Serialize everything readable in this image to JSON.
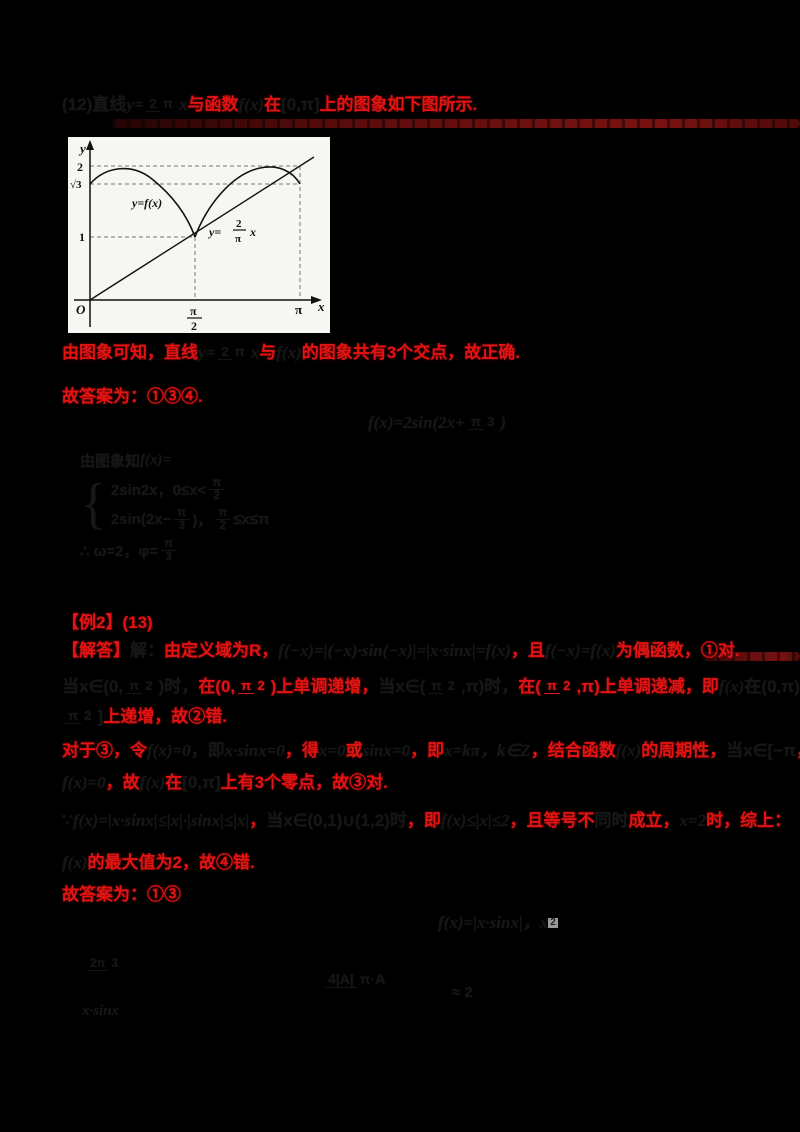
{
  "page": {
    "background": "#000000",
    "accent_red": "#e21313",
    "divider_maroon": "#5c0c0c",
    "faint_ink": "#161616",
    "figure_bg": "#f6f6f3"
  },
  "p12": {
    "intro": [
      {
        "t": "(12)直线",
        "c": "ink"
      },
      {
        "t": "y=",
        "c": "ink",
        "i": true
      },
      {
        "f": {
          "n": "2",
          "d": "π"
        },
        "c": "ink"
      },
      {
        "t": "x",
        "c": "ink",
        "i": true
      },
      {
        "t": "与函数",
        "c": "red"
      },
      {
        "t": "f(x)",
        "c": "ink",
        "i": true
      },
      {
        "t": "在",
        "c": "red"
      },
      {
        "t": "[0,π]",
        "c": "ink"
      },
      {
        "t": "上的图象如下图所示.",
        "c": "red"
      }
    ],
    "analysis": [
      {
        "t": "由图象可知，直线",
        "c": "red"
      },
      {
        "t": "y=",
        "c": "ink",
        "i": true
      },
      {
        "f": {
          "n": "2",
          "d": "π"
        },
        "c": "ink"
      },
      {
        "t": "x",
        "c": "ink",
        "i": true
      },
      {
        "t": "与",
        "c": "red"
      },
      {
        "t": "f(x)",
        "c": "ink",
        "i": true
      },
      {
        "t": "的图象共有3个交点，故正确.",
        "c": "red"
      }
    ],
    "answer": [
      {
        "t": "故答案为：①③④.",
        "c": "red"
      }
    ],
    "formula": [
      {
        "t": "f(x)=2sin(2x+",
        "c": "ink",
        "i": true
      },
      {
        "f": {
          "n": "π",
          "d": "3"
        },
        "c": "ink"
      },
      {
        "t": ")",
        "c": "ink",
        "i": true
      }
    ],
    "deriv_head": [
      {
        "t": "由图象知",
        "c": "ink"
      },
      {
        "t": "f(x)=",
        "c": "ink",
        "i": true
      }
    ],
    "case1": [
      {
        "t": "2sin2x，0≤x<",
        "c": "ink"
      },
      {
        "f": {
          "n": "π",
          "d": "2"
        },
        "c": "ink"
      }
    ],
    "case2": [
      {
        "t": "2sin(2x−",
        "c": "ink"
      },
      {
        "f": {
          "n": "π",
          "d": "3"
        },
        "c": "ink"
      },
      {
        "t": ")，",
        "c": "ink"
      },
      {
        "f": {
          "n": "π",
          "d": "2"
        },
        "c": "ink"
      },
      {
        "t": "≤x≤π",
        "c": "ink"
      }
    ],
    "deriv_tail": [
      {
        "t": "∴ ω=2，φ=",
        "c": "ink"
      },
      {
        "f": {
          "n": "π",
          "d": "3"
        },
        "c": "ink"
      }
    ]
  },
  "p13": {
    "header": [
      {
        "t": "【例2】(13)",
        "c": "red"
      }
    ],
    "l1": [
      {
        "t": "【解答】",
        "c": "red"
      },
      {
        "t": "解：",
        "c": "ink"
      },
      {
        "t": "由定义域为R，",
        "c": "red"
      },
      {
        "t": "f(−x)=|(−x)·sin(−x)|=|x·sinx|=f(x)",
        "c": "ink",
        "i": true
      },
      {
        "t": "，且",
        "c": "red"
      },
      {
        "t": "f(−x)=f(x)",
        "c": "ink",
        "i": true
      },
      {
        "t": "为偶函数，①对.",
        "c": "red"
      }
    ],
    "l2": [
      {
        "t": "当x∈(0,",
        "c": "ink"
      },
      {
        "f": {
          "n": "π",
          "d": "2"
        },
        "c": "ink"
      },
      {
        "t": ")时，",
        "c": "ink"
      },
      {
        "t": "在(0,",
        "c": "red"
      },
      {
        "f": {
          "n": "π",
          "d": "2"
        },
        "c": "red"
      },
      {
        "t": ")上单调递增，",
        "c": "red"
      },
      {
        "t": "当x∈(",
        "c": "ink"
      },
      {
        "f": {
          "n": "π",
          "d": "2"
        },
        "c": "ink"
      },
      {
        "t": ",π)时，",
        "c": "ink"
      },
      {
        "t": "在(",
        "c": "red"
      },
      {
        "f": {
          "n": "π",
          "d": "2"
        },
        "c": "red"
      },
      {
        "t": ",π)上单调递减，",
        "c": "red"
      },
      {
        "t": "即",
        "c": "red"
      },
      {
        "t": "f(x)",
        "c": "ink",
        "i": true
      },
      {
        "t": "在(0,π)内不单调，不可能在",
        "c": "ink"
      },
      {
        "t": "[0,",
        "c": "red"
      }
    ],
    "l3": [
      {
        "f": {
          "n": "π",
          "d": "2"
        },
        "c": "ink"
      },
      {
        "t": "]",
        "c": "ink"
      },
      {
        "t": "上递增，故②错.",
        "c": "red"
      }
    ],
    "l4": [
      {
        "t": "对于③，令",
        "c": "red"
      },
      {
        "t": "f(x)=0",
        "c": "ink",
        "i": true
      },
      {
        "t": "，即",
        "c": "ink"
      },
      {
        "t": "x·sinx=0",
        "c": "ink",
        "i": true
      },
      {
        "t": "，得",
        "c": "red"
      },
      {
        "t": "x=0",
        "c": "ink",
        "i": true
      },
      {
        "t": "或",
        "c": "red"
      },
      {
        "t": "sinx=0",
        "c": "ink",
        "i": true
      },
      {
        "t": "，即",
        "c": "red"
      },
      {
        "t": "x=kπ，k∈Z",
        "c": "ink",
        "i": true
      },
      {
        "t": "，结合函数",
        "c": "red"
      },
      {
        "t": "f(x)",
        "c": "ink",
        "i": true
      },
      {
        "t": "的周期性，",
        "c": "red"
      },
      {
        "t": "当x∈[−π",
        "c": "ink"
      },
      {
        "t": "，",
        "c": "red"
      },
      {
        "t": "π]",
        "c": "ink"
      },
      {
        "t": "时，",
        "c": "red"
      }
    ],
    "l5": [
      {
        "t": "f(x)=0",
        "c": "ink",
        "i": true
      },
      {
        "t": "，故",
        "c": "red"
      },
      {
        "t": "f(x)",
        "c": "ink",
        "i": true
      },
      {
        "t": "在",
        "c": "red"
      },
      {
        "t": "[0,π]",
        "c": "ink"
      },
      {
        "t": "上有3个零点，故③对.",
        "c": "red"
      }
    ],
    "l6": [
      {
        "t": "∵",
        "c": "ink"
      },
      {
        "t": "f(x)=|x·sinx|≤|x|·|sinx|≤|x|",
        "c": "ink",
        "i": true
      },
      {
        "t": "，",
        "c": "red"
      },
      {
        "t": "当x∈(0,1)∪(1,2)时",
        "c": "ink"
      },
      {
        "t": "，即",
        "c": "red"
      },
      {
        "t": "f(x)≤|x|≤2",
        "c": "ink",
        "i": true
      },
      {
        "t": "，且等号不",
        "c": "red"
      },
      {
        "t": "同时",
        "c": "ink"
      },
      {
        "t": "成立，",
        "c": "red"
      },
      {
        "t": "x=2",
        "c": "ink",
        "i": true
      },
      {
        "t": "时，",
        "c": "red"
      },
      {
        "t": "综上：",
        "c": "red"
      }
    ],
    "l7": [
      {
        "t": "f(x)",
        "c": "ink",
        "i": true
      },
      {
        "t": "的最大值为2，故④错.",
        "c": "red"
      }
    ],
    "l8": [
      {
        "t": "故答案为：①③",
        "c": "red"
      }
    ],
    "formula2": [
      {
        "t": "f(x)=|x·sinx|",
        "c": "ink",
        "i": true
      },
      {
        "t": "，x",
        "c": "ink",
        "i": true
      },
      {
        "t": "2",
        "c": "ink",
        "sup": true
      }
    ],
    "b1a": [
      {
        "f": {
          "n": "2π",
          "d": "3"
        },
        "c": "ink"
      }
    ],
    "b1b": [
      {
        "t": "x·sinx",
        "c": "ink",
        "i": true
      }
    ],
    "b2": [
      {
        "f": {
          "n": "4|A|",
          "d": "π·A"
        },
        "c": "ink"
      }
    ],
    "b3": [
      {
        "t": "≈ 2",
        "c": "ink"
      }
    ]
  },
  "graph": {
    "y_axis_label": "y",
    "x_axis_label": "x",
    "origin_label": "O",
    "tick_y_2": "2",
    "tick_y_sqrt3": "√3",
    "tick_y_1": "1",
    "tick_x_pi_num": "π",
    "tick_x_pi_den": "2",
    "tick_x_pi": "π",
    "curve_label": "y=f(x)",
    "line_label_pre": "y=",
    "line_frac_num": "2",
    "line_frac_den": "π",
    "line_label_post": "x"
  },
  "chart_data": {
    "type": "line",
    "title": "",
    "xlabel": "x",
    "ylabel": "y",
    "xlim": [
      0,
      3.45
    ],
    "ylim": [
      0,
      2.3
    ],
    "x_ticks": [
      "O",
      "π/2",
      "π"
    ],
    "y_ticks": [
      1,
      1.732,
      2
    ],
    "grid": false,
    "legend_position": "inline-annotations",
    "series": [
      {
        "name": "y=f(x)",
        "style": "solid curve, two arches with cusp at (π/2, 1)",
        "points": [
          [
            0,
            1.732
          ],
          [
            0.52,
            2
          ],
          [
            1.05,
            1.5
          ],
          [
            1.571,
            1
          ],
          [
            2.09,
            1.8
          ],
          [
            2.62,
            2
          ],
          [
            3.142,
            1.732
          ]
        ]
      },
      {
        "name": "y=(2/π)x",
        "style": "straight line through origin",
        "points": [
          [
            0,
            0
          ],
          [
            1.571,
            1
          ],
          [
            3.142,
            2
          ]
        ]
      }
    ],
    "annotations": [
      {
        "text": "y=f(x)",
        "x": 0.9,
        "y": 1.75
      },
      {
        "text": "y=(2/π)x",
        "x": 1.9,
        "y": 1.05
      }
    ],
    "dashed_guides": [
      "y=2 from axis to x=π",
      "y=√3 from axis to x=π",
      "y=1 from axis to x=π/2",
      "x=π/2 vertical",
      "x=π vertical"
    ]
  }
}
